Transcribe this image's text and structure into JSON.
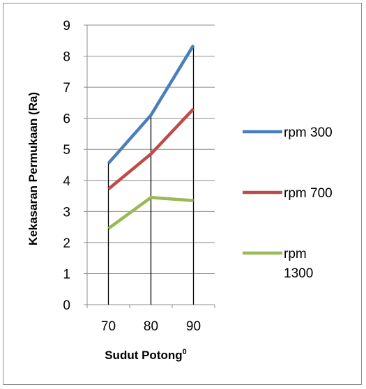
{
  "chart_data": {
    "type": "line",
    "title": "",
    "xlabel": "Sudut Potong",
    "xlabel_superscript": "0",
    "ylabel": "Kekasaran Permukaan (Ra)",
    "categories": [
      "70",
      "80",
      "90"
    ],
    "ylim": [
      0,
      9
    ],
    "yticks": [
      "0",
      "1",
      "2",
      "3",
      "4",
      "5",
      "6",
      "7",
      "8",
      "9"
    ],
    "grid": true,
    "drop_lines": true,
    "legend_position": "right",
    "series": [
      {
        "name": "rpm 300",
        "legend_lines": [
          "rpm 300"
        ],
        "color": "#4a7ebb",
        "values": [
          4.55,
          6.1,
          8.35
        ]
      },
      {
        "name": "rpm 700",
        "legend_lines": [
          "rpm 700"
        ],
        "color": "#be4b48",
        "values": [
          3.72,
          4.85,
          6.3
        ]
      },
      {
        "name": "rpm 1300",
        "legend_lines": [
          "rpm",
          "1300"
        ],
        "color": "#98b954",
        "values": [
          2.45,
          3.45,
          3.35
        ]
      }
    ]
  }
}
